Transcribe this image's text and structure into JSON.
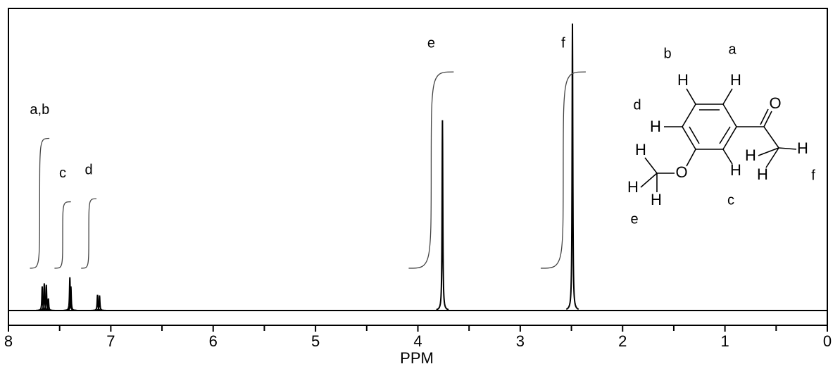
{
  "chart_data": {
    "type": "nmr",
    "x_label": "PPM",
    "xlim": [
      8,
      0
    ],
    "xticks": [
      8,
      7,
      6,
      5,
      4,
      3,
      2,
      1,
      0
    ],
    "xminorticks": [
      7.5,
      6.5,
      5.5,
      4.5,
      3.5,
      2.5,
      1.5,
      0.5
    ],
    "ylim": [
      0,
      100
    ],
    "color": "#000000",
    "peaks": {
      "x": [
        7.67,
        7.65,
        7.63,
        7.61,
        7.4,
        7.39,
        7.13,
        7.11,
        3.76,
        2.49
      ],
      "values": [
        8,
        9,
        8.5,
        4,
        11,
        8,
        5.2,
        5,
        63,
        95
      ]
    },
    "integrals": [
      {
        "label": "a,b",
        "from": 7.79,
        "to": 7.6,
        "start": 14,
        "end": 57
      },
      {
        "label": "c",
        "from": 7.55,
        "to": 7.39,
        "start": 14,
        "end": 36
      },
      {
        "label": "d",
        "from": 7.29,
        "to": 7.14,
        "start": 14,
        "end": 37
      },
      {
        "label": "e",
        "from": 4.09,
        "to": 3.65,
        "start": 14,
        "end": 79
      },
      {
        "label": "f",
        "from": 2.8,
        "to": 2.36,
        "start": 14,
        "end": 79
      }
    ]
  },
  "molecule": {
    "atoms": [
      "H",
      "H",
      "O",
      "H",
      "H",
      "H",
      "H",
      "O",
      "H",
      "H",
      "H",
      "H"
    ],
    "sites": [
      "a",
      "b",
      "c",
      "d",
      "e",
      "f"
    ]
  }
}
